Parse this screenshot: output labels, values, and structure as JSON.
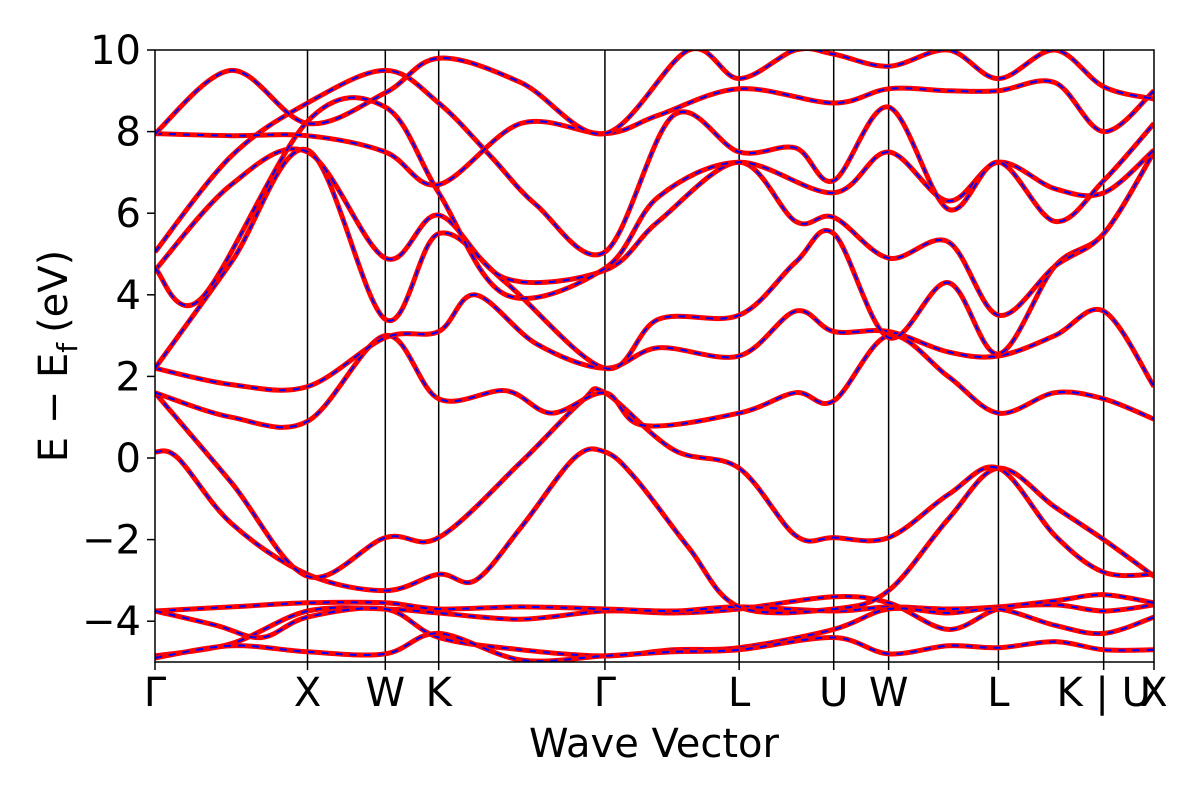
{
  "chart_data": {
    "type": "line",
    "title": "",
    "xlabel": "Wave Vector",
    "ylabel": "E − E",
    "ylabel_subscript": "f",
    "ylabel_unit": "(eV)",
    "ylim": [
      -5,
      10
    ],
    "xlim": [
      0,
      6.55
    ],
    "yticks": [
      -4,
      -2,
      0,
      2,
      4,
      6,
      8,
      10
    ],
    "ytick_labels": [
      "−4",
      "−2",
      "0",
      "2",
      "4",
      "6",
      "8",
      "10"
    ],
    "kpoints": [
      {
        "label": "Γ",
        "x": 0.0
      },
      {
        "label": "X",
        "x": 1.0
      },
      {
        "label": "W",
        "x": 1.51
      },
      {
        "label": "K",
        "x": 1.86
      },
      {
        "label": "Γ",
        "x": 2.95
      },
      {
        "label": "L",
        "x": 3.83
      },
      {
        "label": "U",
        "x": 4.45
      },
      {
        "label": "W",
        "x": 4.81
      },
      {
        "label": "L",
        "x": 5.53
      },
      {
        "label": "K | U",
        "x": 6.22
      },
      {
        "label": "X",
        "x": 6.55
      }
    ],
    "grid": false,
    "series_styles": [
      {
        "color": "#ff0000",
        "style": "solid"
      },
      {
        "color": "#0000ff",
        "style": "dashed"
      }
    ],
    "bands": [
      [
        [
          0,
          -4.85
        ],
        [
          0.5,
          -4.55
        ],
        [
          1.0,
          -3.75
        ],
        [
          1.51,
          -3.7
        ],
        [
          1.86,
          -3.8
        ],
        [
          2.4,
          -3.95
        ],
        [
          2.95,
          -3.75
        ],
        [
          3.4,
          -3.8
        ],
        [
          3.83,
          -3.7
        ],
        [
          4.45,
          -3.4
        ],
        [
          4.81,
          -3.55
        ],
        [
          5.2,
          -4.2
        ],
        [
          5.53,
          -3.7
        ],
        [
          5.9,
          -3.6
        ],
        [
          6.22,
          -3.75
        ],
        [
          6.55,
          -3.6
        ]
      ],
      [
        [
          0,
          -3.75
        ],
        [
          0.5,
          -3.65
        ],
        [
          1.0,
          -3.55
        ],
        [
          1.51,
          -3.55
        ],
        [
          1.86,
          -3.7
        ],
        [
          2.4,
          -3.65
        ],
        [
          2.95,
          -3.7
        ],
        [
          3.4,
          -3.75
        ],
        [
          3.83,
          -3.65
        ],
        [
          4.45,
          -3.75
        ],
        [
          4.81,
          -3.65
        ],
        [
          5.2,
          -3.7
        ],
        [
          5.53,
          -3.65
        ],
        [
          5.9,
          -3.5
        ],
        [
          6.22,
          -3.35
        ],
        [
          6.55,
          -3.55
        ]
      ],
      [
        [
          0,
          -3.75
        ],
        [
          0.4,
          -4.1
        ],
        [
          0.7,
          -4.4
        ],
        [
          1.0,
          -3.9
        ],
        [
          1.51,
          -3.7
        ],
        [
          1.86,
          -4.4
        ],
        [
          2.4,
          -4.7
        ],
        [
          2.95,
          -4.85
        ],
        [
          3.4,
          -4.7
        ],
        [
          3.83,
          -4.65
        ],
        [
          4.45,
          -4.2
        ],
        [
          4.81,
          -3.7
        ],
        [
          5.2,
          -3.8
        ],
        [
          5.53,
          -3.7
        ],
        [
          5.9,
          -4.1
        ],
        [
          6.22,
          -4.3
        ],
        [
          6.55,
          -3.9
        ]
      ],
      [
        [
          0,
          -4.9
        ],
        [
          0.5,
          -4.6
        ],
        [
          1.0,
          -4.75
        ],
        [
          1.51,
          -4.8
        ],
        [
          1.86,
          -4.3
        ],
        [
          2.4,
          -4.95
        ],
        [
          2.95,
          -4.85
        ],
        [
          3.4,
          -4.75
        ],
        [
          3.83,
          -4.7
        ],
        [
          4.45,
          -4.4
        ],
        [
          4.81,
          -4.8
        ],
        [
          5.2,
          -4.6
        ],
        [
          5.53,
          -4.65
        ],
        [
          5.9,
          -4.5
        ],
        [
          6.22,
          -4.7
        ],
        [
          6.55,
          -4.7
        ]
      ],
      [
        [
          0,
          0.15
        ],
        [
          0.15,
          0.0
        ],
        [
          0.5,
          -1.6
        ],
        [
          1.0,
          -2.85
        ],
        [
          1.51,
          -3.25
        ],
        [
          1.86,
          -2.85
        ],
        [
          2.1,
          -3.0
        ],
        [
          2.4,
          -1.7
        ],
        [
          2.75,
          0.0
        ],
        [
          2.95,
          0.15
        ],
        [
          3.15,
          -0.5
        ],
        [
          3.5,
          -2.2
        ],
        [
          3.83,
          -3.65
        ],
        [
          4.45,
          -3.7
        ],
        [
          4.81,
          -3.25
        ],
        [
          5.2,
          -1.5
        ],
        [
          5.53,
          -0.25
        ],
        [
          5.9,
          -1.2
        ],
        [
          6.22,
          -2.0
        ],
        [
          6.55,
          -2.9
        ]
      ],
      [
        [
          0,
          1.6
        ],
        [
          0.5,
          -0.6
        ],
        [
          1.0,
          -2.9
        ],
        [
          1.51,
          -1.95
        ],
        [
          1.86,
          -1.95
        ],
        [
          2.4,
          -0.1
        ],
        [
          2.8,
          1.4
        ],
        [
          2.95,
          1.6
        ],
        [
          3.4,
          0.2
        ],
        [
          3.83,
          -0.25
        ],
        [
          4.2,
          -1.9
        ],
        [
          4.45,
          -1.95
        ],
        [
          4.81,
          -1.95
        ],
        [
          5.2,
          -0.9
        ],
        [
          5.53,
          -0.25
        ],
        [
          5.9,
          -1.9
        ],
        [
          6.22,
          -2.8
        ],
        [
          6.55,
          -2.85
        ]
      ],
      [
        [
          0,
          1.6
        ],
        [
          0.5,
          1.0
        ],
        [
          1.0,
          0.9
        ],
        [
          1.51,
          3.0
        ],
        [
          1.86,
          1.45
        ],
        [
          2.3,
          1.65
        ],
        [
          2.6,
          1.1
        ],
        [
          2.95,
          1.6
        ],
        [
          3.2,
          0.8
        ],
        [
          3.83,
          1.1
        ],
        [
          4.2,
          1.6
        ],
        [
          4.45,
          1.4
        ],
        [
          4.81,
          3.0
        ],
        [
          5.2,
          2.0
        ],
        [
          5.53,
          1.1
        ],
        [
          5.9,
          1.6
        ],
        [
          6.22,
          1.45
        ],
        [
          6.55,
          0.95
        ]
      ],
      [
        [
          0,
          2.2
        ],
        [
          0.5,
          1.8
        ],
        [
          1.0,
          1.75
        ],
        [
          1.51,
          2.95
        ],
        [
          1.86,
          3.1
        ],
        [
          2.1,
          4.0
        ],
        [
          2.5,
          2.8
        ],
        [
          2.95,
          2.2
        ],
        [
          3.3,
          2.7
        ],
        [
          3.83,
          2.5
        ],
        [
          4.2,
          3.6
        ],
        [
          4.45,
          3.1
        ],
        [
          4.81,
          3.1
        ],
        [
          5.2,
          2.6
        ],
        [
          5.53,
          2.5
        ],
        [
          5.9,
          3.0
        ],
        [
          6.22,
          3.6
        ],
        [
          6.55,
          1.75
        ]
      ],
      [
        [
          0,
          2.2
        ],
        [
          0.5,
          4.8
        ],
        [
          1.0,
          7.55
        ],
        [
          1.51,
          3.4
        ],
        [
          1.86,
          5.5
        ],
        [
          2.3,
          4.3
        ],
        [
          2.95,
          2.2
        ],
        [
          3.3,
          3.4
        ],
        [
          3.83,
          3.5
        ],
        [
          4.2,
          4.8
        ],
        [
          4.45,
          5.5
        ],
        [
          4.81,
          2.95
        ],
        [
          5.2,
          4.3
        ],
        [
          5.53,
          2.55
        ],
        [
          5.9,
          4.7
        ],
        [
          6.22,
          5.5
        ],
        [
          6.55,
          7.5
        ]
      ],
      [
        [
          0,
          4.6
        ],
        [
          0.5,
          6.7
        ],
        [
          1.0,
          7.5
        ],
        [
          1.51,
          4.9
        ],
        [
          1.86,
          5.95
        ],
        [
          2.3,
          4.4
        ],
        [
          2.95,
          4.6
        ],
        [
          3.3,
          5.8
        ],
        [
          3.83,
          7.25
        ],
        [
          4.2,
          5.8
        ],
        [
          4.45,
          5.9
        ],
        [
          4.81,
          4.9
        ],
        [
          5.2,
          5.3
        ],
        [
          5.53,
          3.5
        ],
        [
          5.9,
          4.7
        ],
        [
          6.22,
          5.5
        ],
        [
          6.55,
          7.5
        ]
      ],
      [
        [
          0,
          4.65
        ],
        [
          0.3,
          3.9
        ],
        [
          1.0,
          8.25
        ],
        [
          1.51,
          8.6
        ],
        [
          1.86,
          6.5
        ],
        [
          2.3,
          4.0
        ],
        [
          2.95,
          4.65
        ],
        [
          3.3,
          6.4
        ],
        [
          3.83,
          7.25
        ],
        [
          4.45,
          6.5
        ],
        [
          4.81,
          7.5
        ],
        [
          5.2,
          6.3
        ],
        [
          5.53,
          7.25
        ],
        [
          5.9,
          6.6
        ],
        [
          6.22,
          6.5
        ],
        [
          6.55,
          7.55
        ]
      ],
      [
        [
          0,
          5.05
        ],
        [
          0.5,
          7.4
        ],
        [
          1.0,
          8.7
        ],
        [
          1.51,
          9.5
        ],
        [
          1.86,
          8.7
        ],
        [
          2.2,
          7.4
        ],
        [
          2.5,
          6.2
        ],
        [
          2.95,
          5.05
        ],
        [
          3.4,
          8.4
        ],
        [
          3.83,
          7.5
        ],
        [
          4.2,
          7.6
        ],
        [
          4.45,
          6.8
        ],
        [
          4.81,
          8.6
        ],
        [
          5.2,
          6.1
        ],
        [
          5.53,
          7.25
        ],
        [
          5.9,
          5.8
        ],
        [
          6.22,
          6.8
        ],
        [
          6.55,
          8.2
        ]
      ],
      [
        [
          0,
          7.95
        ],
        [
          0.5,
          7.9
        ],
        [
          1.0,
          7.9
        ],
        [
          1.51,
          7.5
        ],
        [
          1.86,
          6.7
        ],
        [
          2.4,
          8.2
        ],
        [
          2.95,
          7.95
        ],
        [
          3.3,
          8.4
        ],
        [
          3.83,
          9.05
        ],
        [
          4.45,
          8.7
        ],
        [
          4.81,
          9.05
        ],
        [
          5.2,
          9.0
        ],
        [
          5.53,
          9.0
        ],
        [
          5.9,
          9.2
        ],
        [
          6.22,
          8.0
        ],
        [
          6.55,
          9.0
        ]
      ],
      [
        [
          0,
          7.95
        ],
        [
          0.5,
          9.5
        ],
        [
          1.0,
          8.2
        ],
        [
          1.51,
          8.95
        ],
        [
          1.86,
          9.8
        ],
        [
          2.4,
          9.2
        ],
        [
          2.95,
          7.95
        ],
        [
          3.5,
          10.0
        ],
        [
          3.83,
          9.3
        ],
        [
          4.2,
          10.0
        ],
        [
          4.45,
          9.9
        ],
        [
          4.81,
          9.6
        ],
        [
          5.2,
          10.0
        ],
        [
          5.53,
          9.3
        ],
        [
          5.9,
          10.0
        ],
        [
          6.22,
          9.1
        ],
        [
          6.55,
          8.8
        ]
      ]
    ]
  }
}
